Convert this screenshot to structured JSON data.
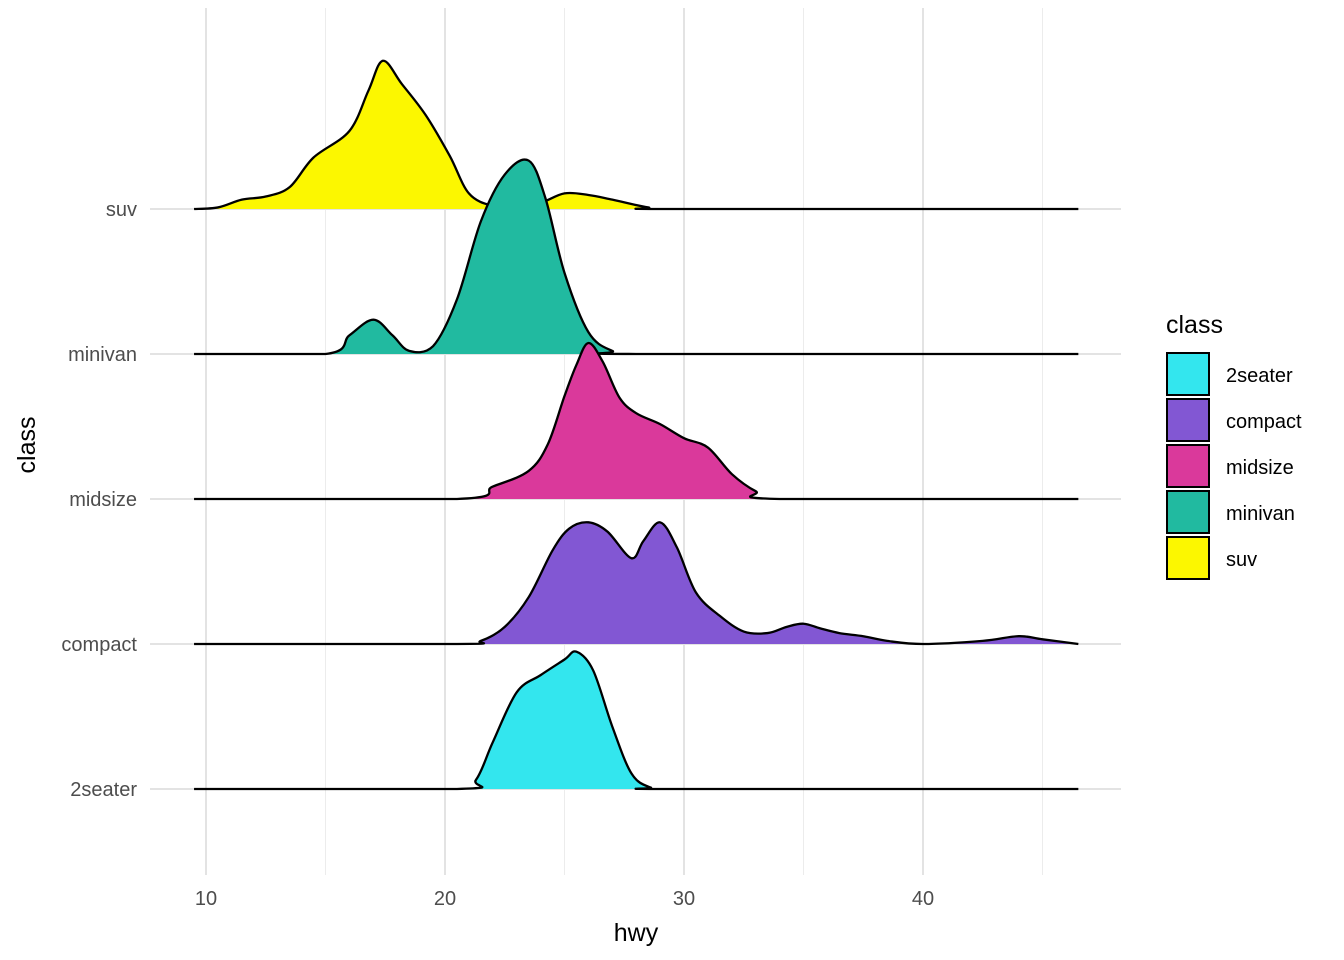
{
  "chart_data": {
    "type": "ridgeline",
    "xlabel": "hwy",
    "ylabel": "class",
    "xlim": [
      9.5,
      46.5
    ],
    "xticks": [
      10,
      20,
      30,
      40
    ],
    "grid": true,
    "legend": {
      "title": "class",
      "position": "right",
      "entries": [
        "2seater",
        "compact",
        "midsize",
        "minivan",
        "suv"
      ]
    },
    "colors": {
      "2seater": "#33E6EE",
      "compact": "#8257D3",
      "midsize": "#DA399B",
      "minivan": "#21BAA0",
      "suv": "#FCF700"
    },
    "categories": [
      "2seater",
      "compact",
      "midsize",
      "minivan",
      "suv"
    ],
    "series": [
      {
        "name": "2seater",
        "density": [
          [
            9.5,
            0
          ],
          [
            20.5,
            0
          ],
          [
            21.3,
            0.06
          ],
          [
            22.0,
            0.3
          ],
          [
            23.0,
            0.62
          ],
          [
            24.0,
            0.73
          ],
          [
            25.0,
            0.83
          ],
          [
            25.5,
            0.88
          ],
          [
            26.2,
            0.76
          ],
          [
            27.0,
            0.4
          ],
          [
            27.8,
            0.1
          ],
          [
            28.6,
            0.01
          ],
          [
            29.5,
            0
          ],
          [
            46.5,
            0
          ]
        ]
      },
      {
        "name": "compact",
        "density": [
          [
            9.5,
            0
          ],
          [
            20.5,
            0
          ],
          [
            21.5,
            0.02
          ],
          [
            22.5,
            0.11
          ],
          [
            23.5,
            0.3
          ],
          [
            24.5,
            0.6
          ],
          [
            25.2,
            0.74
          ],
          [
            26.0,
            0.78
          ],
          [
            26.8,
            0.72
          ],
          [
            27.8,
            0.55
          ],
          [
            28.3,
            0.66
          ],
          [
            29.0,
            0.78
          ],
          [
            29.7,
            0.62
          ],
          [
            30.5,
            0.33
          ],
          [
            31.5,
            0.18
          ],
          [
            32.5,
            0.08
          ],
          [
            33.5,
            0.07
          ],
          [
            34.3,
            0.11
          ],
          [
            35.0,
            0.13
          ],
          [
            35.7,
            0.1
          ],
          [
            36.5,
            0.07
          ],
          [
            37.5,
            0.05
          ],
          [
            38.5,
            0.02
          ],
          [
            40.0,
            0
          ],
          [
            42.5,
            0.02
          ],
          [
            44.0,
            0.05
          ],
          [
            45.0,
            0.03
          ],
          [
            46.5,
            0
          ]
        ]
      },
      {
        "name": "midsize",
        "density": [
          [
            9.5,
            0
          ],
          [
            20.5,
            0
          ],
          [
            22.0,
            0.08
          ],
          [
            23.5,
            0.18
          ],
          [
            24.3,
            0.35
          ],
          [
            25.0,
            0.66
          ],
          [
            25.5,
            0.86
          ],
          [
            26.0,
            1.0
          ],
          [
            26.6,
            0.88
          ],
          [
            27.3,
            0.65
          ],
          [
            28.0,
            0.55
          ],
          [
            29.0,
            0.48
          ],
          [
            30.0,
            0.39
          ],
          [
            31.0,
            0.33
          ],
          [
            32.0,
            0.16
          ],
          [
            33.0,
            0.05
          ],
          [
            34.0,
            0
          ],
          [
            46.5,
            0
          ]
        ]
      },
      {
        "name": "minivan",
        "density": [
          [
            9.5,
            0
          ],
          [
            15.0,
            0
          ],
          [
            16.0,
            0.12
          ],
          [
            17.0,
            0.22
          ],
          [
            17.8,
            0.12
          ],
          [
            18.5,
            0.02
          ],
          [
            19.5,
            0.05
          ],
          [
            20.5,
            0.35
          ],
          [
            21.5,
            0.85
          ],
          [
            22.5,
            1.15
          ],
          [
            23.5,
            1.24
          ],
          [
            24.2,
            1.0
          ],
          [
            25.0,
            0.52
          ],
          [
            26.0,
            0.14
          ],
          [
            27.0,
            0.02
          ],
          [
            28.0,
            0
          ],
          [
            46.5,
            0
          ]
        ]
      },
      {
        "name": "suv",
        "density": [
          [
            9.5,
            0
          ],
          [
            10.5,
            0.01
          ],
          [
            11.5,
            0.06
          ],
          [
            12.5,
            0.08
          ],
          [
            13.5,
            0.14
          ],
          [
            14.5,
            0.33
          ],
          [
            16.0,
            0.5
          ],
          [
            16.8,
            0.76
          ],
          [
            17.4,
            0.95
          ],
          [
            18.2,
            0.8
          ],
          [
            19.2,
            0.6
          ],
          [
            20.2,
            0.34
          ],
          [
            21.0,
            0.1
          ],
          [
            22.0,
            0.02
          ],
          [
            23.0,
            0.02
          ],
          [
            24.0,
            0.04
          ],
          [
            25.0,
            0.1
          ],
          [
            26.0,
            0.09
          ],
          [
            27.0,
            0.06
          ],
          [
            28.5,
            0.01
          ],
          [
            29.5,
            0
          ],
          [
            46.5,
            0
          ]
        ]
      }
    ]
  }
}
